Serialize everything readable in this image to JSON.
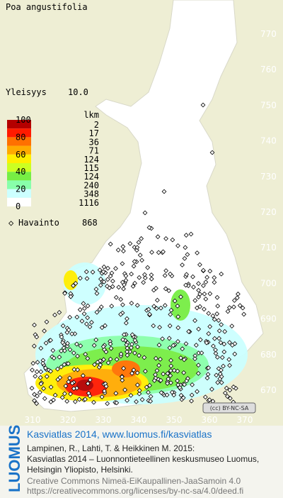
{
  "header": {
    "title": "Poa angustifolia",
    "frequency_label": "Yleisyys",
    "frequency_value": "10.0"
  },
  "legend": {
    "count_header": "lkm",
    "scale_labels": [
      "100",
      "80",
      "60",
      "40",
      "20",
      "0"
    ],
    "bands": [
      {
        "count": "2",
        "color": "#b40000"
      },
      {
        "count": "17",
        "color": "#ff1a00"
      },
      {
        "count": "36",
        "color": "#ff7000"
      },
      {
        "count": "71",
        "color": "#ffaa00"
      },
      {
        "count": "124",
        "color": "#ffee00"
      },
      {
        "count": "115",
        "color": "#ccff22"
      },
      {
        "count": "124",
        "color": "#77ee44"
      },
      {
        "count": "240",
        "color": "#88ffaa"
      },
      {
        "count": "348",
        "color": "#ccffff"
      },
      {
        "count": "1116",
        "color": "#ffffff"
      }
    ],
    "observation_label": "Havainto",
    "observation_count": "868"
  },
  "map": {
    "y_labels": [
      "770",
      "760",
      "750",
      "740",
      "730",
      "720",
      "710",
      "700",
      "690",
      "680",
      "670"
    ],
    "x_labels": [
      "310",
      "320",
      "330",
      "340",
      "350",
      "360",
      "370"
    ],
    "license_badge": "(cc) BY-NC-SA"
  },
  "footer": {
    "logo": "LUOMUS",
    "link": "Kasviatlas 2014, www.luomus.fi/kasviatlas",
    "citation": [
      "Lampinen, R., Lahti, T. & Heikkinen M. 2015:",
      "Kasviatlas 2014 – Luonnontieteellinen keskusmuseo Luomus,",
      "Helsingin Yliopisto, Helsinki."
    ],
    "license": [
      "Creative Commons Nimeä-EiKaupallinen-JaaSamoin 4.0",
      "https://creativecommons.org/licenses/by-nc-sa/4.0/deed.fi"
    ]
  }
}
